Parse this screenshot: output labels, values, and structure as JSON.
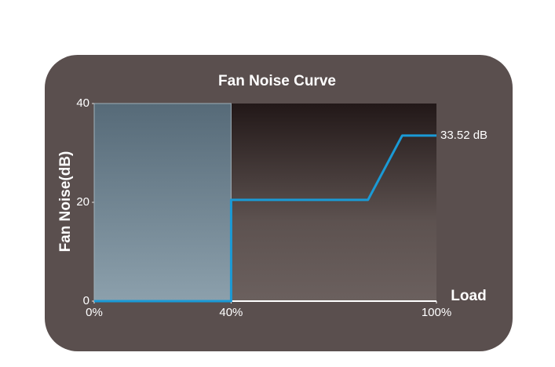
{
  "chart_data": {
    "type": "line",
    "title": "Fan Noise Curve",
    "y_label": "Fan Noise(dB)",
    "x_label": "Load",
    "x": [
      0,
      40,
      40,
      80,
      90,
      100
    ],
    "values": [
      0,
      0,
      20.5,
      20.5,
      33.52,
      33.52
    ],
    "value_labels": [
      null,
      null,
      null,
      null,
      null,
      "33.52 dB"
    ],
    "color": "#1a9ad6",
    "shaded_range": [
      0,
      40
    ],
    "xlim": [
      0,
      100
    ],
    "xticks": [
      {
        "value": 0,
        "label": "0%"
      },
      {
        "value": 40,
        "label": "40%"
      },
      {
        "value": 100,
        "label": "100%"
      }
    ],
    "ylim": [
      0,
      40
    ],
    "yticks": [
      0,
      20,
      40
    ]
  }
}
